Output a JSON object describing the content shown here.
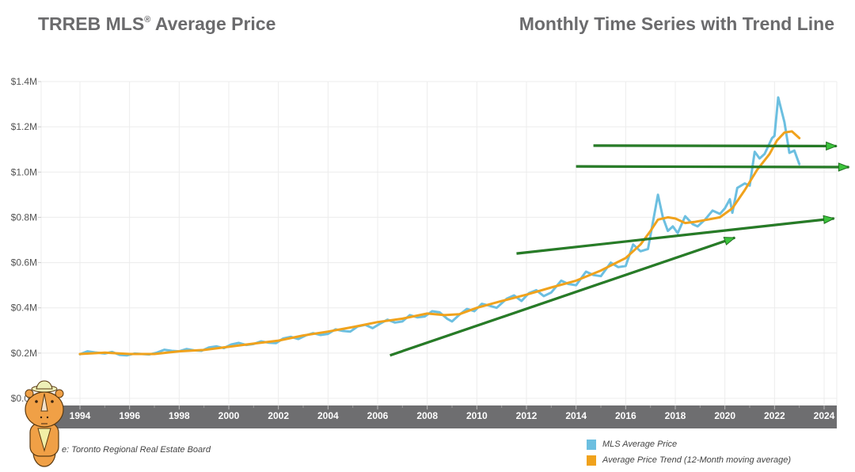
{
  "header": {
    "title_main": "TRREB MLS",
    "title_reg": "®",
    "title_rest": " Average Price",
    "subtitle": "Monthly Time Series with Trend Line"
  },
  "source": "Source: Toronto Regional Real Estate Board",
  "source_visible": "e: Toronto Regional Real Estate Board",
  "colors": {
    "mls": "#6cbfe0",
    "trend": "#f0a21c",
    "arrow": "#1f6e1f",
    "arrow_fill": "#3cc43c",
    "axis_band": "#6e6e70",
    "grid": "#ececec"
  },
  "chart_data": {
    "type": "line",
    "title": "TRREB MLS® Average Price — Monthly Time Series with Trend Line",
    "xlabel": "",
    "ylabel": "",
    "xlim": [
      1993.6,
      2024.5
    ],
    "ylim": [
      0,
      1400000
    ],
    "grid": true,
    "legend_position": "bottom-right",
    "yticks": [
      {
        "value": 0,
        "label": "$0.0M"
      },
      {
        "value": 200000,
        "label": "$0.2M"
      },
      {
        "value": 400000,
        "label": "$0.4M"
      },
      {
        "value": 600000,
        "label": "$0.6M"
      },
      {
        "value": 800000,
        "label": "$0.8M"
      },
      {
        "value": 1000000,
        "label": "$1.0M"
      },
      {
        "value": 1200000,
        "label": "$1.2M"
      },
      {
        "value": 1400000,
        "label": "$1.4M"
      }
    ],
    "xticks": [
      "1994",
      "1996",
      "1998",
      "2000",
      "2002",
      "2004",
      "2006",
      "2008",
      "2010",
      "2012",
      "2014",
      "2016",
      "2018",
      "2020",
      "2022",
      "2024"
    ],
    "series": [
      {
        "name": "MLS Average Price",
        "color": "#6cbfe0",
        "points": [
          [
            1994.0,
            195000
          ],
          [
            1994.3,
            208000
          ],
          [
            1994.6,
            203000
          ],
          [
            1995.0,
            198000
          ],
          [
            1995.3,
            205000
          ],
          [
            1995.6,
            192000
          ],
          [
            1995.9,
            190000
          ],
          [
            1996.2,
            198000
          ],
          [
            1996.5,
            196000
          ],
          [
            1996.8,
            194000
          ],
          [
            1997.1,
            202000
          ],
          [
            1997.4,
            215000
          ],
          [
            1997.7,
            210000
          ],
          [
            1998.0,
            208000
          ],
          [
            1998.3,
            218000
          ],
          [
            1998.6,
            212000
          ],
          [
            1998.9,
            210000
          ],
          [
            1999.2,
            225000
          ],
          [
            1999.5,
            230000
          ],
          [
            1999.8,
            222000
          ],
          [
            2000.1,
            238000
          ],
          [
            2000.4,
            245000
          ],
          [
            2000.7,
            236000
          ],
          [
            2001.0,
            240000
          ],
          [
            2001.3,
            252000
          ],
          [
            2001.6,
            246000
          ],
          [
            2001.9,
            244000
          ],
          [
            2002.2,
            265000
          ],
          [
            2002.5,
            272000
          ],
          [
            2002.8,
            262000
          ],
          [
            2003.1,
            278000
          ],
          [
            2003.4,
            288000
          ],
          [
            2003.7,
            280000
          ],
          [
            2004.0,
            285000
          ],
          [
            2004.3,
            305000
          ],
          [
            2004.6,
            298000
          ],
          [
            2004.9,
            295000
          ],
          [
            2005.2,
            318000
          ],
          [
            2005.5,
            325000
          ],
          [
            2005.8,
            310000
          ],
          [
            2006.1,
            330000
          ],
          [
            2006.4,
            348000
          ],
          [
            2006.7,
            335000
          ],
          [
            2007.0,
            340000
          ],
          [
            2007.3,
            368000
          ],
          [
            2007.6,
            358000
          ],
          [
            2007.9,
            362000
          ],
          [
            2008.2,
            385000
          ],
          [
            2008.5,
            380000
          ],
          [
            2008.8,
            352000
          ],
          [
            2009.0,
            340000
          ],
          [
            2009.3,
            370000
          ],
          [
            2009.6,
            395000
          ],
          [
            2009.9,
            385000
          ],
          [
            2010.2,
            418000
          ],
          [
            2010.5,
            410000
          ],
          [
            2010.8,
            400000
          ],
          [
            2011.2,
            440000
          ],
          [
            2011.5,
            455000
          ],
          [
            2011.8,
            430000
          ],
          [
            2012.1,
            465000
          ],
          [
            2012.4,
            478000
          ],
          [
            2012.7,
            452000
          ],
          [
            2013.0,
            468000
          ],
          [
            2013.4,
            520000
          ],
          [
            2013.7,
            505000
          ],
          [
            2014.0,
            500000
          ],
          [
            2014.4,
            560000
          ],
          [
            2014.7,
            545000
          ],
          [
            2015.0,
            540000
          ],
          [
            2015.4,
            600000
          ],
          [
            2015.7,
            580000
          ],
          [
            2016.0,
            585000
          ],
          [
            2016.3,
            680000
          ],
          [
            2016.6,
            650000
          ],
          [
            2016.9,
            660000
          ],
          [
            2017.1,
            780000
          ],
          [
            2017.3,
            900000
          ],
          [
            2017.5,
            800000
          ],
          [
            2017.7,
            740000
          ],
          [
            2017.9,
            760000
          ],
          [
            2018.1,
            730000
          ],
          [
            2018.4,
            805000
          ],
          [
            2018.7,
            770000
          ],
          [
            2018.9,
            760000
          ],
          [
            2019.2,
            790000
          ],
          [
            2019.5,
            830000
          ],
          [
            2019.8,
            815000
          ],
          [
            2020.0,
            840000
          ],
          [
            2020.2,
            880000
          ],
          [
            2020.3,
            820000
          ],
          [
            2020.5,
            930000
          ],
          [
            2020.8,
            950000
          ],
          [
            2021.0,
            940000
          ],
          [
            2021.2,
            1090000
          ],
          [
            2021.4,
            1060000
          ],
          [
            2021.6,
            1080000
          ],
          [
            2021.9,
            1150000
          ],
          [
            2022.0,
            1160000
          ],
          [
            2022.15,
            1330000
          ],
          [
            2022.4,
            1220000
          ],
          [
            2022.6,
            1085000
          ],
          [
            2022.8,
            1095000
          ],
          [
            2023.0,
            1035000
          ]
        ]
      },
      {
        "name": "Average Price Trend (12-Month moving average)",
        "color": "#f0a21c",
        "points": [
          [
            1994.0,
            196000
          ],
          [
            1995.0,
            202000
          ],
          [
            1996.0,
            196000
          ],
          [
            1997.0,
            196000
          ],
          [
            1998.0,
            208000
          ],
          [
            1999.0,
            214000
          ],
          [
            2000.0,
            228000
          ],
          [
            2001.0,
            242000
          ],
          [
            2002.0,
            255000
          ],
          [
            2003.0,
            278000
          ],
          [
            2004.0,
            295000
          ],
          [
            2005.0,
            315000
          ],
          [
            2006.0,
            337000
          ],
          [
            2007.0,
            352000
          ],
          [
            2008.0,
            375000
          ],
          [
            2008.7,
            368000
          ],
          [
            2009.3,
            372000
          ],
          [
            2010.0,
            400000
          ],
          [
            2011.0,
            430000
          ],
          [
            2012.0,
            458000
          ],
          [
            2013.0,
            490000
          ],
          [
            2014.0,
            520000
          ],
          [
            2015.0,
            565000
          ],
          [
            2016.0,
            620000
          ],
          [
            2016.6,
            680000
          ],
          [
            2017.0,
            740000
          ],
          [
            2017.3,
            790000
          ],
          [
            2017.7,
            800000
          ],
          [
            2018.0,
            795000
          ],
          [
            2018.4,
            775000
          ],
          [
            2018.8,
            780000
          ],
          [
            2019.3,
            790000
          ],
          [
            2019.8,
            800000
          ],
          [
            2020.3,
            840000
          ],
          [
            2020.8,
            920000
          ],
          [
            2021.3,
            1010000
          ],
          [
            2021.8,
            1080000
          ],
          [
            2022.1,
            1140000
          ],
          [
            2022.4,
            1175000
          ],
          [
            2022.7,
            1180000
          ],
          [
            2023.0,
            1150000
          ]
        ]
      }
    ],
    "annotations": [
      {
        "type": "arrow",
        "from": [
          2006.5,
          190000
        ],
        "to": [
          2020.4,
          710000
        ]
      },
      {
        "type": "arrow",
        "from": [
          2011.6,
          640000
        ],
        "to": [
          2024.4,
          795000
        ]
      },
      {
        "type": "arrow",
        "from": [
          2014.7,
          1117000
        ],
        "to": [
          2024.5,
          1115000
        ]
      },
      {
        "type": "arrow",
        "from": [
          2014.0,
          1025000
        ],
        "to": [
          2025.0,
          1022000
        ]
      }
    ]
  },
  "legend": {
    "items": [
      {
        "label": "MLS Average Price",
        "color": "#6cbfe0"
      },
      {
        "label": "Average Price Trend (12-Month moving average)",
        "color": "#f0a21c"
      }
    ]
  },
  "mascot": {
    "icon": "rhino-mascot-icon"
  }
}
